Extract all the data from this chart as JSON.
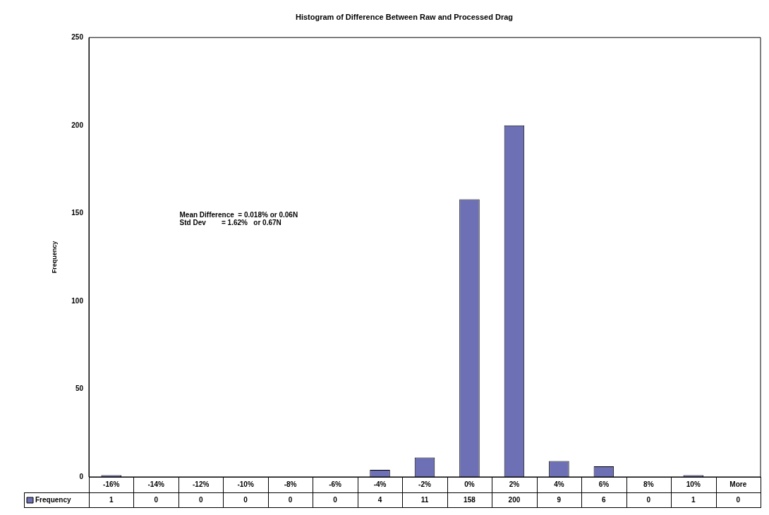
{
  "chart_data": {
    "type": "bar",
    "title": "Histogram of Difference Between Raw and Processed Drag",
    "ylabel": "Frequency",
    "categories": [
      "-16%",
      "-14%",
      "-12%",
      "-10%",
      "-8%",
      "-6%",
      "-4%",
      "-2%",
      "0%",
      "2%",
      "4%",
      "6%",
      "8%",
      "10%",
      "More"
    ],
    "series": [
      {
        "name": "Frequency",
        "color": "#6d70b4",
        "values": [
          1,
          0,
          0,
          0,
          0,
          0,
          4,
          11,
          158,
          200,
          9,
          6,
          0,
          1,
          0
        ]
      }
    ],
    "ylim": [
      0,
      250
    ],
    "yticks": [
      0,
      50,
      100,
      150,
      200,
      250
    ],
    "grid": false,
    "legend": "bottom",
    "data_labels": true,
    "annotations": [
      "Mean Difference  = 0.018% or 0.06N",
      "Std Dev        = 1.62%   or 0.67N"
    ]
  }
}
